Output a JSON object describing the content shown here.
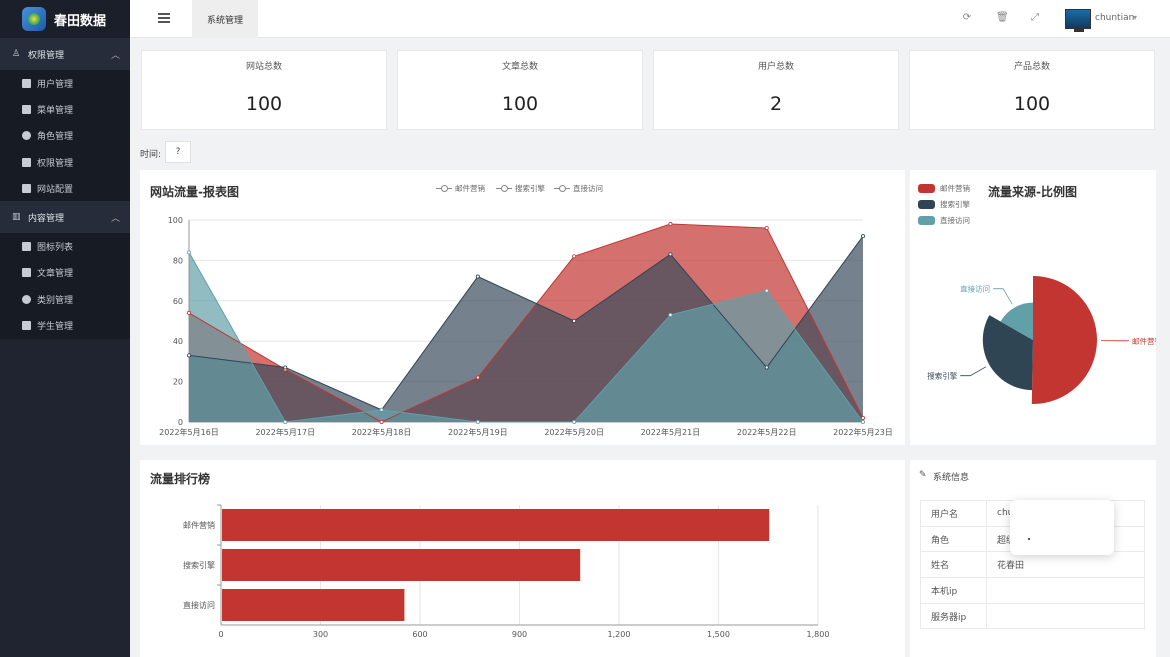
{
  "app": {
    "title": "春田数据"
  },
  "sidebar": {
    "groups": [
      {
        "label": "权限管理",
        "items": [
          {
            "label": "用户管理"
          },
          {
            "label": "菜单管理"
          },
          {
            "label": "角色管理"
          },
          {
            "label": "权限管理"
          },
          {
            "label": "网站配置"
          }
        ]
      },
      {
        "label": "内容管理",
        "items": [
          {
            "label": "图标列表"
          },
          {
            "label": "文章管理"
          },
          {
            "label": "类别管理"
          },
          {
            "label": "学生管理"
          }
        ]
      }
    ]
  },
  "header": {
    "tab": "系统管理",
    "username": "chuntian",
    "icons": [
      "menu-icon",
      "refresh-icon",
      "trash-icon",
      "fullscreen-icon"
    ]
  },
  "stats": [
    {
      "label": "网站总数",
      "value": "100"
    },
    {
      "label": "文章总数",
      "value": "100"
    },
    {
      "label": "用户总数",
      "value": "2"
    },
    {
      "label": "产品总数",
      "value": "100"
    }
  ],
  "filter": {
    "time_label": "时间:",
    "time_value": "?"
  },
  "colors": {
    "red": "#c23531",
    "dark": "#2f4554",
    "teal": "#61a0a8"
  },
  "chart_data": [
    {
      "type": "area",
      "title": "网站流量-报表图",
      "categories": [
        "2022年5月16日",
        "2022年5月17日",
        "2022年5月18日",
        "2022年5月19日",
        "2022年5月20日",
        "2022年5月21日",
        "2022年5月22日",
        "2022年5月23日"
      ],
      "ylim": [
        0,
        100
      ],
      "yticks": [
        "0",
        "20",
        "40",
        "60",
        "80",
        "100"
      ],
      "series": [
        {
          "name": "邮件营销",
          "values": [
            54,
            26,
            0,
            22,
            82,
            98,
            96,
            2
          ]
        },
        {
          "name": "搜索引擎",
          "values": [
            33,
            27,
            6,
            72,
            50,
            83,
            27,
            92
          ]
        },
        {
          "name": "直接访问",
          "values": [
            84,
            0,
            6,
            0,
            0,
            53,
            65,
            0
          ]
        }
      ]
    },
    {
      "type": "pie",
      "title": "流量来源-比例图",
      "legend": [
        "邮件营销",
        "搜索引擎",
        "直接访问"
      ],
      "slices": [
        {
          "name": "邮件营销",
          "value": 1650
        },
        {
          "name": "搜索引擎",
          "value": 1080
        },
        {
          "name": "直接访问",
          "value": 550
        }
      ]
    },
    {
      "type": "bar",
      "title": "流量排行榜",
      "categories": [
        "邮件营销",
        "搜索引擎",
        "直接访问"
      ],
      "values": [
        1650,
        1080,
        550
      ],
      "xlim": [
        0,
        1800
      ],
      "xticks": [
        "0",
        "300",
        "600",
        "900",
        "1,200",
        "1,500",
        "1,800"
      ]
    }
  ],
  "sysinfo": {
    "title": "系统信息",
    "rows": [
      {
        "key": "用户名",
        "value": "chu"
      },
      {
        "key": "角色",
        "value": "超级"
      },
      {
        "key": "姓名",
        "value": "花春田"
      },
      {
        "key": "本机ip",
        "value": ""
      },
      {
        "key": "服务器ip",
        "value": ""
      }
    ]
  }
}
